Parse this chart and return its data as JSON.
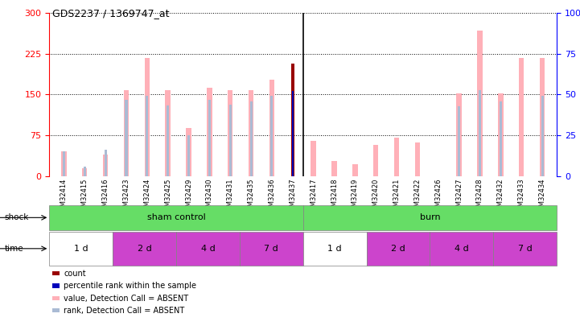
{
  "title": "GDS2237 / 1369747_at",
  "samples": [
    "GSM32414",
    "GSM32415",
    "GSM32416",
    "GSM32423",
    "GSM32424",
    "GSM32425",
    "GSM32429",
    "GSM32430",
    "GSM32431",
    "GSM32435",
    "GSM32436",
    "GSM32437",
    "GSM32417",
    "GSM32418",
    "GSM32419",
    "GSM32420",
    "GSM32421",
    "GSM32422",
    "GSM32426",
    "GSM32427",
    "GSM32428",
    "GSM32432",
    "GSM32433",
    "GSM32434"
  ],
  "pink_values": [
    45,
    15,
    40,
    158,
    217,
    158,
    88,
    163,
    158,
    158,
    178,
    0,
    65,
    28,
    22,
    58,
    70,
    62,
    0,
    152,
    268,
    152,
    217,
    217
  ],
  "blue_rank_values": [
    45,
    18,
    48,
    140,
    148,
    130,
    75,
    140,
    132,
    138,
    148,
    0,
    0,
    0,
    0,
    0,
    0,
    0,
    0,
    128,
    158,
    138,
    0,
    148
  ],
  "count_values": [
    0,
    0,
    0,
    0,
    0,
    0,
    0,
    0,
    0,
    0,
    0,
    207,
    0,
    0,
    0,
    0,
    0,
    0,
    0,
    0,
    0,
    0,
    0,
    0
  ],
  "percentile_values": [
    0,
    0,
    0,
    0,
    0,
    0,
    0,
    0,
    0,
    0,
    0,
    52,
    0,
    0,
    0,
    0,
    0,
    0,
    0,
    0,
    0,
    0,
    0,
    0
  ],
  "ylim_left": [
    0,
    300
  ],
  "ylim_right": [
    0,
    100
  ],
  "left_ticks": [
    0,
    75,
    150,
    225,
    300
  ],
  "right_ticks": [
    0,
    25,
    50,
    75,
    100
  ],
  "time_groups": [
    {
      "label": "1 d",
      "start": 0,
      "end": 3,
      "color": "#ffffff"
    },
    {
      "label": "2 d",
      "start": 3,
      "end": 6,
      "color": "#CC44CC"
    },
    {
      "label": "4 d",
      "start": 6,
      "end": 9,
      "color": "#CC44CC"
    },
    {
      "label": "7 d",
      "start": 9,
      "end": 12,
      "color": "#CC44CC"
    },
    {
      "label": "1 d",
      "start": 12,
      "end": 15,
      "color": "#ffffff"
    },
    {
      "label": "2 d",
      "start": 15,
      "end": 18,
      "color": "#CC44CC"
    },
    {
      "label": "4 d",
      "start": 18,
      "end": 21,
      "color": "#CC44CC"
    },
    {
      "label": "7 d",
      "start": 21,
      "end": 24,
      "color": "#CC44CC"
    }
  ],
  "pink_color": "#FFB0B8",
  "lightblue_color": "#AABBD4",
  "darkred_color": "#990000",
  "blue_color": "#0000BB",
  "green_color": "#66DD66",
  "legend_items": [
    {
      "color": "#990000",
      "label": "count"
    },
    {
      "color": "#0000BB",
      "label": "percentile rank within the sample"
    },
    {
      "color": "#FFB0B8",
      "label": "value, Detection Call = ABSENT"
    },
    {
      "color": "#AABBD4",
      "label": "rank, Detection Call = ABSENT"
    }
  ]
}
